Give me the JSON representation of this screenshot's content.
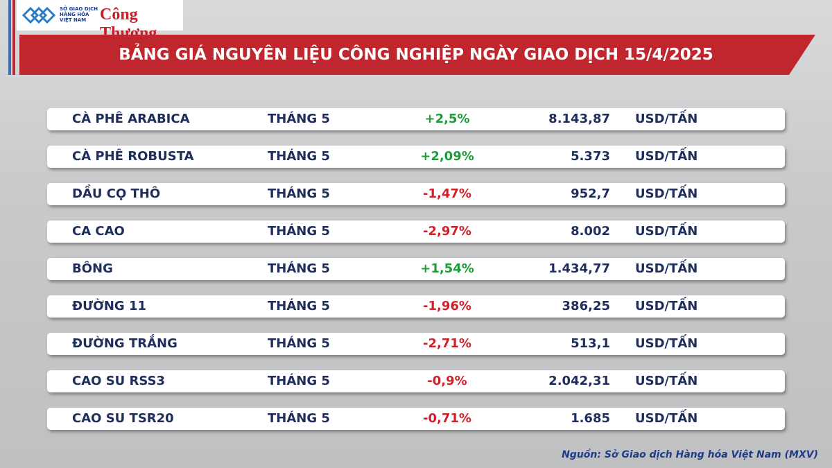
{
  "header": {
    "logo_lines": [
      "SỞ GIAO DỊCH",
      "HÀNG HÓA",
      "VIỆT NAM"
    ],
    "brand": "Công Thương",
    "title": "BẢNG GIÁ NGUYÊN LIỆU CÔNG NGHIỆP NGÀY GIAO DỊCH 15/4/2025"
  },
  "table": {
    "rows": [
      [
        "CÀ PHÊ ARABICA",
        "THÁNG 5",
        "+2,5%",
        "8.143,87",
        "USD/TẤN"
      ],
      [
        "CÀ PHÊ ROBUSTA",
        "THÁNG 5",
        "+2,09%",
        "5.373",
        "USD/TẤN"
      ],
      [
        "DẦU CỌ THÔ",
        "THÁNG 5",
        "-1,47%",
        "952,7",
        "USD/TẤN"
      ],
      [
        "CA CAO",
        "THÁNG 5",
        "-2,97%",
        "8.002",
        "USD/TẤN"
      ],
      [
        "BÔNG",
        "THÁNG 5",
        "+1,54%",
        "1.434,77",
        "USD/TẤN"
      ],
      [
        "ĐƯỜNG 11",
        "THÁNG 5",
        "-1,96%",
        "386,25",
        "USD/TẤN"
      ],
      [
        "ĐƯỜNG TRẮNG",
        "THÁNG 5",
        "-2,71%",
        "513,1",
        "USD/TẤN"
      ],
      [
        "CAO SU RSS3",
        "THÁNG 5",
        "-0,9%",
        "2.042,31",
        "USD/TẤN"
      ],
      [
        "CAO SU TSR20",
        "THÁNG 5",
        "-0,71%",
        "1.685",
        "USD/TẤN"
      ]
    ]
  },
  "footer": {
    "source": "Nguồn: Sở Giao dịch Hàng hóa Việt Nam (MXV)"
  }
}
